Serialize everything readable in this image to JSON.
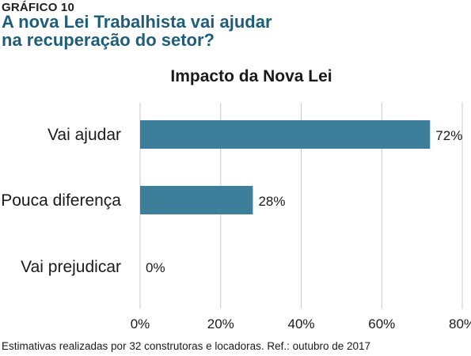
{
  "header": {
    "kicker": "GRÁFICO 10",
    "headline_line1": "A nova Lei Trabalhista vai ajudar",
    "headline_line2": "na recuperação do setor?"
  },
  "footnote": "Estimativas realizadas por 32 construtoras e locadoras. Ref.: outubro de 2017",
  "chart_data": {
    "type": "bar",
    "orientation": "horizontal",
    "title": "Impacto da Nova Lei",
    "categories": [
      "Vai ajudar",
      "Pouca diferença",
      "Vai prejudicar"
    ],
    "values": [
      72,
      28,
      0
    ],
    "data_labels": [
      "72%",
      "28%",
      "0%"
    ],
    "xlim": [
      0,
      80
    ],
    "xticks": [
      0,
      20,
      40,
      60,
      80
    ],
    "xtick_labels": [
      "0%",
      "20%",
      "40%",
      "60%",
      "80%"
    ],
    "xlabel": "",
    "ylabel": "",
    "grid": "vertical",
    "legend": "none",
    "bar_color": "#3d7f9b"
  }
}
